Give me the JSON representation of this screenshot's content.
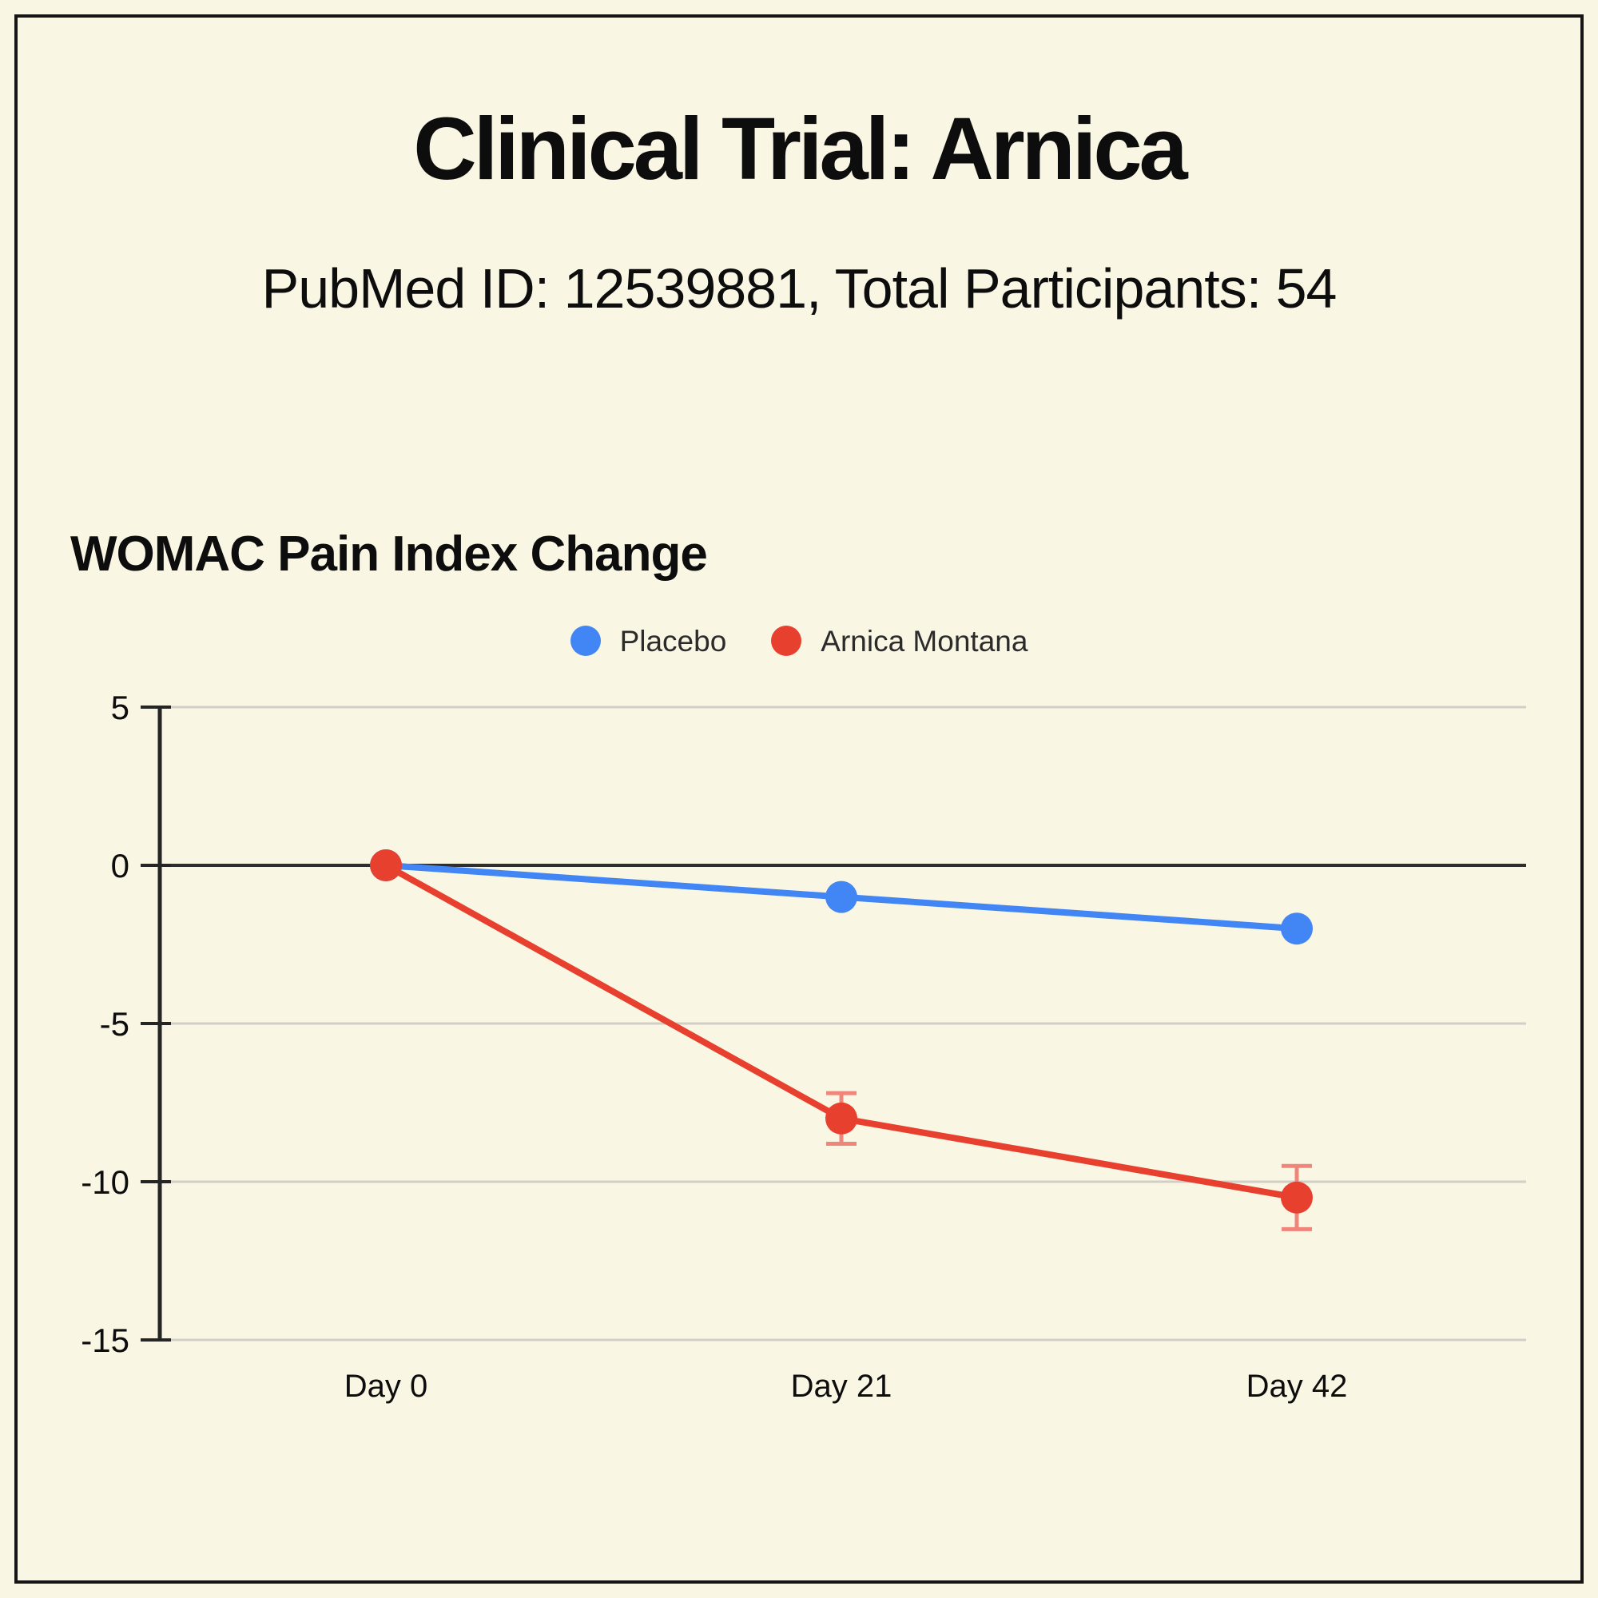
{
  "page": {
    "title": "Clinical Trial: Arnica",
    "subtitle": "PubMed ID: 12539881, Total Participants: 54"
  },
  "chart_data": {
    "type": "line",
    "title": "WOMAC Pain Index Change",
    "categories": [
      "Day 0",
      "Day 21",
      "Day 42"
    ],
    "series": [
      {
        "name": "Placebo",
        "values": [
          0,
          -1,
          -2
        ],
        "color": "#4285F4",
        "error": [
          null,
          null,
          null
        ]
      },
      {
        "name": "Arnica Montana",
        "values": [
          0,
          -8,
          -10.5
        ],
        "color": "#E8402F",
        "error": [
          null,
          0.8,
          1.0
        ],
        "error_color": "#F0857B"
      }
    ],
    "xlabel": "",
    "ylabel": "",
    "ylim": [
      -15,
      5
    ],
    "yticks": [
      5,
      0,
      -5,
      -10,
      -15
    ],
    "grid": true,
    "legend_position": "top"
  },
  "theme": {
    "background": "#FAF6E4",
    "frame_border": "#151515",
    "text": "#0D0D0D",
    "gridline": "#D2CFC6",
    "zero_line": "#2E2E2E",
    "axis": "#252525"
  }
}
